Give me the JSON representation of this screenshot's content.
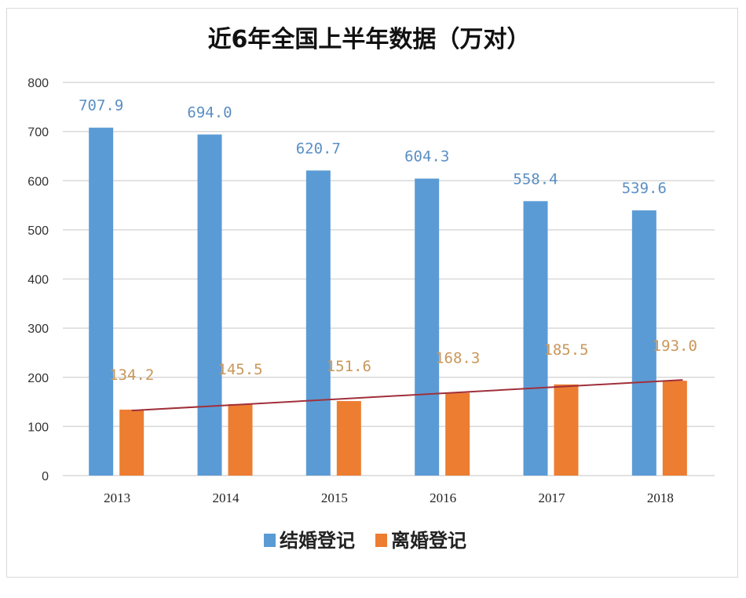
{
  "chart_data": {
    "type": "bar",
    "title": "近6年全国上半年数据（万对）",
    "categories": [
      "2013",
      "2014",
      "2015",
      "2016",
      "2017",
      "2018"
    ],
    "series": [
      {
        "name": "结婚登记",
        "color": "#5b9bd5",
        "label_color": "#5b8fc4",
        "values": [
          707.9,
          694.0,
          620.7,
          604.3,
          558.4,
          539.6
        ],
        "labels": [
          "707.9",
          "694.0",
          "620.7",
          "604.3",
          "558.4",
          "539.6"
        ]
      },
      {
        "name": "离婚登记",
        "color": "#ed7d31",
        "label_color": "#c9975a",
        "values": [
          134.2,
          145.5,
          151.6,
          168.3,
          185.5,
          193.0
        ],
        "labels": [
          "134.2",
          "145.5",
          "151.6",
          "168.3",
          "185.5",
          "193.0"
        ]
      }
    ],
    "trendline": {
      "series": "离婚登记",
      "type": "linear",
      "color": "#a0303a"
    },
    "ylim": [
      0,
      800
    ],
    "yticks": [
      0,
      100,
      200,
      300,
      400,
      500,
      600,
      700,
      800
    ],
    "xlabel": "",
    "ylabel": "",
    "grid": true,
    "legend": "bottom"
  }
}
